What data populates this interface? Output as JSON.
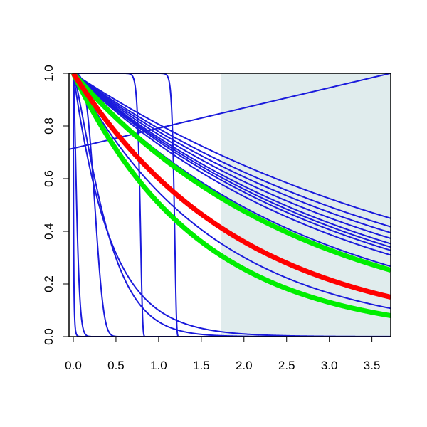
{
  "chart_data": {
    "type": "line",
    "title": "",
    "xlabel": "",
    "ylabel": "",
    "xlim": [
      -0.05,
      3.72
    ],
    "ylim": [
      0.0,
      1.0
    ],
    "x_ticks": [
      0.0,
      0.5,
      1.0,
      1.5,
      2.0,
      2.5,
      3.0,
      3.5
    ],
    "x_tick_labels": [
      "0.0",
      "0.5",
      "1.0",
      "1.5",
      "2.0",
      "2.5",
      "3.0",
      "3.5"
    ],
    "y_ticks": [
      0.0,
      0.2,
      0.4,
      0.6,
      0.8,
      1.0
    ],
    "y_tick_labels": [
      "0.0",
      "0.2",
      "0.4",
      "0.6",
      "0.8",
      "1.0"
    ],
    "shaded_region": {
      "x_start": 1.73,
      "x_end": 3.72,
      "color": "#e0eced"
    },
    "colors": {
      "blue": "#1a1adc",
      "red": "#ff0000",
      "green": "#00ee00"
    },
    "curve_kinds": {
      "exponential": "y = exp(-rate * x)",
      "power": "y = exp(-(x/scale)^shape)",
      "linear": "y = intercept + slope * x"
    },
    "series": [
      {
        "kind": "exponential",
        "rate": 0.215,
        "color": "blue",
        "width": "thin",
        "x_end_value": 0.45
      },
      {
        "kind": "exponential",
        "rate": 0.235,
        "color": "blue",
        "width": "thin",
        "x_end_value": 0.417
      },
      {
        "kind": "exponential",
        "rate": 0.25,
        "color": "blue",
        "width": "thin",
        "x_end_value": 0.394
      },
      {
        "kind": "exponential",
        "rate": 0.265,
        "color": "blue",
        "width": "thin",
        "x_end_value": 0.373
      },
      {
        "kind": "exponential",
        "rate": 0.28,
        "color": "blue",
        "width": "thin",
        "x_end_value": 0.353
      },
      {
        "kind": "exponential",
        "rate": 0.29,
        "color": "blue",
        "width": "thin",
        "x_end_value": 0.34
      },
      {
        "kind": "exponential",
        "rate": 0.3,
        "color": "blue",
        "width": "thin",
        "x_end_value": 0.327
      },
      {
        "kind": "exponential",
        "rate": 0.315,
        "color": "blue",
        "width": "thin",
        "x_end_value": 0.309
      },
      {
        "kind": "exponential",
        "rate": 0.355,
        "color": "blue",
        "width": "thin",
        "x_end_value": 0.266
      },
      {
        "kind": "exponential",
        "rate": 0.6,
        "color": "blue",
        "width": "thin",
        "x_end_value": 0.107
      },
      {
        "kind": "exponential",
        "rate": 2.3,
        "color": "blue",
        "width": "thin",
        "x_end_value": 0.0
      },
      {
        "kind": "power",
        "scale": 0.43,
        "shape": 1.25,
        "color": "blue",
        "width": "thin",
        "x_end_value": 0.0
      },
      {
        "kind": "power",
        "scale": 0.004,
        "shape": 0.7,
        "color": "blue",
        "width": "thin",
        "x_end_value": 0.0
      },
      {
        "kind": "power",
        "scale": 0.05,
        "shape": 1.5,
        "color": "blue",
        "width": "thin",
        "x_end_value": 0.0
      },
      {
        "kind": "power",
        "scale": 0.28,
        "shape": 3.5,
        "color": "blue",
        "width": "thin",
        "x_end_value": 0.0
      },
      {
        "kind": "power",
        "scale": 0.79,
        "shape": 35,
        "color": "blue",
        "width": "thin",
        "x_end_value": 0.0
      },
      {
        "kind": "power",
        "scale": 1.19,
        "shape": 60,
        "color": "blue",
        "width": "thin",
        "x_end_value": 0.0
      },
      {
        "kind": "linear",
        "intercept": 0.715,
        "slope": 0.0767,
        "color": "blue",
        "width": "thin",
        "x_end_value": 1.0
      },
      {
        "kind": "exponential",
        "rate": 0.37,
        "color": "green",
        "width": "thick",
        "x_end_value": 0.253
      },
      {
        "kind": "exponential",
        "rate": 0.68,
        "color": "green",
        "width": "thick",
        "x_end_value": 0.08
      },
      {
        "kind": "exponential",
        "rate": 0.51,
        "color": "red",
        "width": "thick",
        "x_end_value": 0.15
      }
    ]
  }
}
